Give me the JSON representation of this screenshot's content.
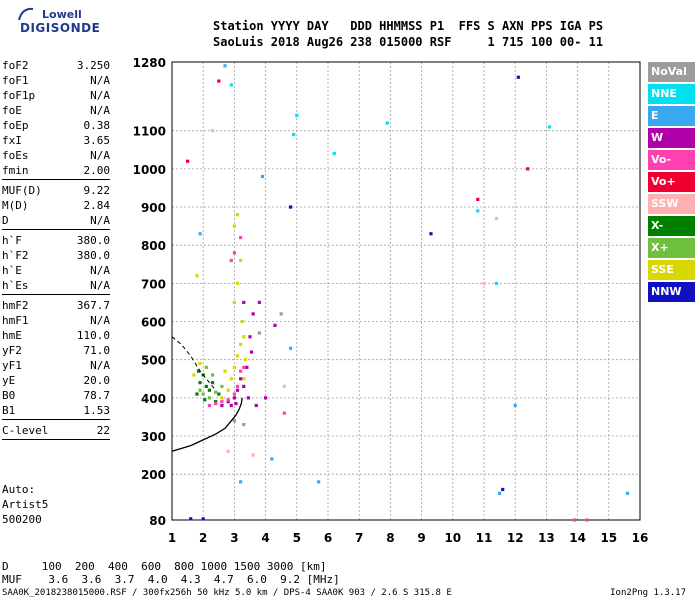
{
  "logo": {
    "top": "Lowell",
    "bottom": "DIGISONDE"
  },
  "header": {
    "line1": "Station YYYY DAY   DDD HHMMSS P1  FFS S AXN PPS IGA PS",
    "line2": "SaoLuis 2018 Aug26 238 015000 RSF     1 715 100 00- 11"
  },
  "params": [
    [
      {
        "name": "foF2",
        "value": "3.250"
      },
      {
        "name": "foF1",
        "value": "N/A"
      },
      {
        "name": "foF1p",
        "value": "N/A"
      },
      {
        "name": "foE",
        "value": "N/A"
      },
      {
        "name": "foEp",
        "value": "0.38"
      },
      {
        "name": "fxI",
        "value": "3.65"
      },
      {
        "name": "foEs",
        "value": "N/A"
      },
      {
        "name": "fmin",
        "value": "2.00"
      }
    ],
    [
      {
        "name": "MUF(D)",
        "value": "9.22"
      },
      {
        "name": "M(D)",
        "value": "2.84"
      },
      {
        "name": "D",
        "value": "N/A"
      }
    ],
    [
      {
        "name": "h`F",
        "value": "380.0"
      },
      {
        "name": "h`F2",
        "value": "380.0"
      },
      {
        "name": "h`E",
        "value": "N/A"
      },
      {
        "name": "h`Es",
        "value": "N/A"
      }
    ],
    [
      {
        "name": "hmF2",
        "value": "367.7"
      },
      {
        "name": "hmF1",
        "value": "N/A"
      },
      {
        "name": "hmE",
        "value": "110.0"
      },
      {
        "name": "yF2",
        "value": "71.0"
      },
      {
        "name": "yF1",
        "value": "N/A"
      },
      {
        "name": "yE",
        "value": "20.0"
      },
      {
        "name": "B0",
        "value": "78.7"
      },
      {
        "name": "B1",
        "value": "1.53"
      }
    ],
    [
      {
        "name": "C-level",
        "value": "22"
      }
    ]
  ],
  "auto": {
    "line1": "Auto:",
    "line2": "Artist5",
    "line3": "500200"
  },
  "bottom": {
    "d_row": "D     100  200  400  600  800 1000 1500 3000 [km]",
    "muf_row": "MUF    3.6  3.6  3.7  4.0  4.3  4.7  6.0  9.2 [MHz]"
  },
  "footer": {
    "left": "SAA0K_2018238015000.RSF / 300fx256h 50 kHz 5.0 km / DPS-4 SAA0K 903 / 2.6 S 315.8 E",
    "right": "Ion2Png 1.3.17"
  },
  "legend": [
    {
      "label": "NoVal",
      "color": "#9c9c9c"
    },
    {
      "label": "NNE",
      "color": "#00e0f0"
    },
    {
      "label": "E",
      "color": "#3aa8f0"
    },
    {
      "label": "W",
      "color": "#b000a8"
    },
    {
      "label": "Vo-",
      "color": "#ff40b0"
    },
    {
      "label": "Vo+",
      "color": "#f00030"
    },
    {
      "label": "SSW",
      "color": "#ffb0b0"
    },
    {
      "label": "X-",
      "color": "#008000"
    },
    {
      "label": "X+",
      "color": "#70c040"
    },
    {
      "label": "SSE",
      "color": "#d8d800"
    },
    {
      "label": "NNW",
      "color": "#1010c0"
    }
  ],
  "chart_data": {
    "type": "scatter",
    "title": "",
    "xlabel": "",
    "ylabel": "",
    "xlim": [
      1,
      16
    ],
    "ylim": [
      80,
      1280
    ],
    "xticks": [
      1,
      2,
      3,
      4,
      5,
      6,
      7,
      8,
      9,
      10,
      11,
      12,
      13,
      14,
      15,
      16
    ],
    "yticks": [
      80,
      200,
      300,
      400,
      500,
      600,
      700,
      800,
      900,
      1000,
      1100,
      1280
    ],
    "grid": true,
    "series": [
      {
        "name": "X-",
        "color": "#008000",
        "points": [
          [
            1.8,
            410
          ],
          [
            1.9,
            440
          ],
          [
            2.0,
            460
          ],
          [
            2.1,
            430
          ],
          [
            2.2,
            420
          ],
          [
            2.3,
            440
          ],
          [
            2.5,
            410
          ],
          [
            1.85,
            470
          ],
          [
            2.4,
            390
          ],
          [
            2.05,
            395
          ]
        ]
      },
      {
        "name": "X+",
        "color": "#70c040",
        "points": [
          [
            1.9,
            420
          ],
          [
            2.0,
            410
          ],
          [
            2.2,
            400
          ],
          [
            2.4,
            415
          ],
          [
            2.6,
            430
          ],
          [
            2.1,
            480
          ],
          [
            2.3,
            460
          ]
        ]
      },
      {
        "name": "SSE",
        "color": "#d8d800",
        "points": [
          [
            1.7,
            460
          ],
          [
            1.9,
            490
          ],
          [
            2.6,
            400
          ],
          [
            2.8,
            420
          ],
          [
            3.0,
            480
          ],
          [
            3.1,
            510
          ],
          [
            3.2,
            540
          ],
          [
            3.25,
            600
          ],
          [
            3.3,
            560
          ],
          [
            2.9,
            450
          ],
          [
            3.0,
            650
          ],
          [
            3.1,
            700
          ],
          [
            3.2,
            760
          ],
          [
            3.0,
            850
          ],
          [
            3.1,
            880
          ],
          [
            1.8,
            720
          ],
          [
            3.3,
            450
          ],
          [
            3.35,
            500
          ],
          [
            2.7,
            470
          ]
        ]
      },
      {
        "name": "W",
        "color": "#b000a8",
        "points": [
          [
            2.6,
            380
          ],
          [
            2.8,
            390
          ],
          [
            3.0,
            400
          ],
          [
            3.1,
            420
          ],
          [
            3.2,
            450
          ],
          [
            3.3,
            430
          ],
          [
            3.4,
            480
          ],
          [
            3.5,
            560
          ],
          [
            3.6,
            620
          ],
          [
            4.3,
            590
          ],
          [
            3.45,
            400
          ],
          [
            3.55,
            520
          ],
          [
            3.7,
            380
          ],
          [
            2.9,
            380
          ],
          [
            3.05,
            385
          ],
          [
            4.0,
            400
          ],
          [
            3.8,
            650
          ],
          [
            3.3,
            650
          ]
        ]
      },
      {
        "name": "Vo-",
        "color": "#ff40b0",
        "points": [
          [
            2.2,
            380
          ],
          [
            2.4,
            385
          ],
          [
            2.6,
            390
          ],
          [
            2.8,
            395
          ],
          [
            3.0,
            410
          ],
          [
            3.1,
            430
          ],
          [
            3.2,
            470
          ],
          [
            3.3,
            480
          ],
          [
            2.9,
            760
          ],
          [
            3.0,
            780
          ],
          [
            13.9,
            80
          ],
          [
            14.3,
            80
          ],
          [
            4.6,
            360
          ],
          [
            3.2,
            820
          ]
        ]
      },
      {
        "name": "Vo+",
        "color": "#f00030",
        "points": [
          [
            1.5,
            1020
          ],
          [
            2.5,
            1230
          ],
          [
            12.4,
            1000
          ],
          [
            10.8,
            920
          ]
        ]
      },
      {
        "name": "SSW",
        "color": "#ffb0b0",
        "points": [
          [
            2.8,
            260
          ],
          [
            3.6,
            250
          ],
          [
            11.0,
            700
          ],
          [
            11.4,
            870
          ],
          [
            2.3,
            1100
          ],
          [
            4.6,
            430
          ]
        ]
      },
      {
        "name": "E",
        "color": "#3aa8f0",
        "points": [
          [
            2.7,
            1270
          ],
          [
            3.2,
            180
          ],
          [
            12.0,
            380
          ],
          [
            11.5,
            150
          ],
          [
            15.6,
            150
          ],
          [
            4.2,
            240
          ],
          [
            3.9,
            980
          ],
          [
            1.9,
            830
          ],
          [
            5.7,
            180
          ],
          [
            4.8,
            530
          ]
        ]
      },
      {
        "name": "NNE",
        "color": "#00e0f0",
        "points": [
          [
            2.9,
            1220
          ],
          [
            5.0,
            1140
          ],
          [
            6.2,
            1040
          ],
          [
            7.9,
            1120
          ],
          [
            10.8,
            890
          ],
          [
            11.4,
            700
          ],
          [
            13.1,
            1110
          ],
          [
            4.9,
            1090
          ]
        ]
      },
      {
        "name": "NNW",
        "color": "#1010c0",
        "points": [
          [
            4.8,
            900
          ],
          [
            9.3,
            830
          ],
          [
            12.1,
            1240
          ],
          [
            11.6,
            160
          ],
          [
            1.6,
            83
          ],
          [
            2.0,
            83
          ]
        ]
      },
      {
        "name": "NoVal",
        "color": "#9c9c9c",
        "points": [
          [
            3.0,
            340
          ],
          [
            3.3,
            330
          ],
          [
            4.5,
            620
          ],
          [
            3.8,
            570
          ]
        ]
      }
    ],
    "profile": {
      "name": "profile",
      "color": "#000000",
      "points": [
        [
          1.0,
          260
        ],
        [
          1.6,
          275
        ],
        [
          2.0,
          290
        ],
        [
          2.4,
          305
        ],
        [
          2.7,
          320
        ],
        [
          2.9,
          340
        ],
        [
          3.05,
          355
        ],
        [
          3.15,
          370
        ],
        [
          3.22,
          385
        ],
        [
          3.25,
          400
        ]
      ]
    },
    "trace_dashed": {
      "name": "trace",
      "color": "#000000",
      "points": [
        [
          1.0,
          560
        ],
        [
          1.3,
          540
        ],
        [
          1.6,
          510
        ],
        [
          1.9,
          470
        ],
        [
          2.2,
          440
        ],
        [
          2.4,
          420
        ]
      ]
    }
  }
}
